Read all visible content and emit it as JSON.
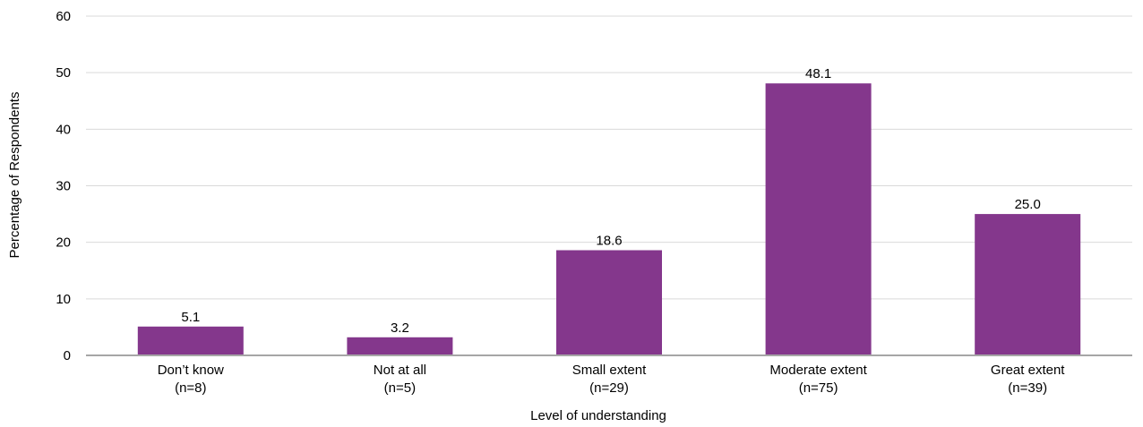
{
  "chart_data": {
    "type": "bar",
    "categories": [
      {
        "label": "Don’t know",
        "n": "(n=8)"
      },
      {
        "label": "Not at all",
        "n": "(n=5)"
      },
      {
        "label": "Small extent",
        "n": "(n=29)"
      },
      {
        "label": "Moderate extent",
        "n": "(n=75)"
      },
      {
        "label": "Great extent",
        "n": "(n=39)"
      }
    ],
    "values": [
      5.1,
      3.2,
      18.6,
      48.1,
      25.0
    ],
    "value_labels": [
      "5.1",
      "3.2",
      "18.6",
      "48.1",
      "25.0"
    ],
    "xlabel": "Level of understanding",
    "ylabel": "Percentage of Respondents",
    "ylim": [
      0,
      60
    ],
    "yticks": [
      0,
      10,
      20,
      30,
      40,
      50,
      60
    ],
    "grid": true,
    "bar_color": "#84378c"
  }
}
